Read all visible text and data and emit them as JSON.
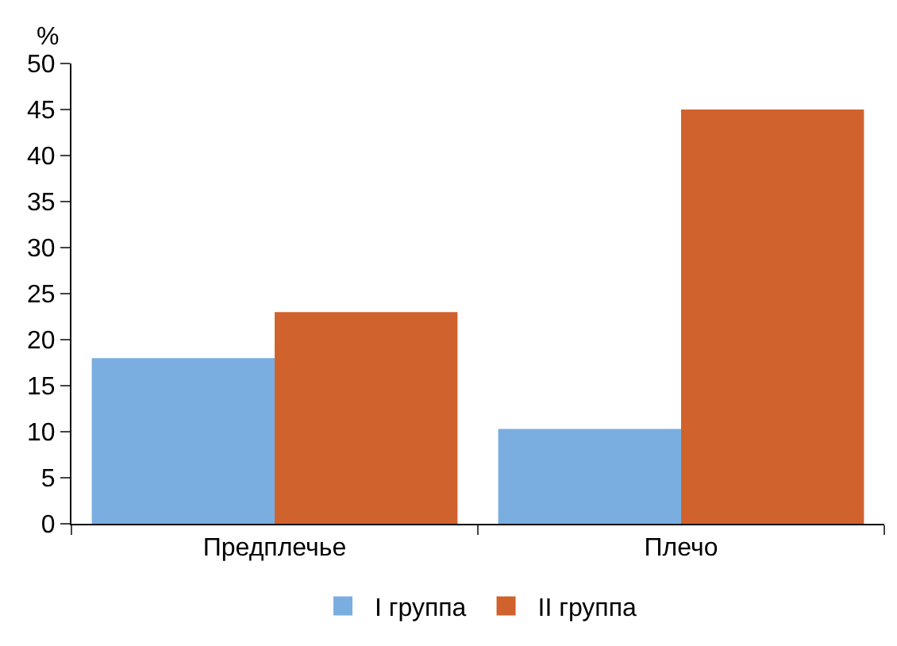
{
  "chart_data": {
    "type": "bar",
    "ylabel": "%",
    "categories": [
      "Предплечье",
      "Плечо"
    ],
    "series": [
      {
        "name": "I группа",
        "color": "#7aaee0",
        "values": [
          18,
          10.3
        ]
      },
      {
        "name": "II группа",
        "color": "#d0622e",
        "values": [
          23,
          45
        ]
      }
    ],
    "ylim": [
      0,
      50
    ],
    "yticks": [
      0,
      5,
      10,
      15,
      20,
      25,
      30,
      35,
      40,
      45,
      50
    ],
    "grid": false,
    "legend": "bottom"
  }
}
